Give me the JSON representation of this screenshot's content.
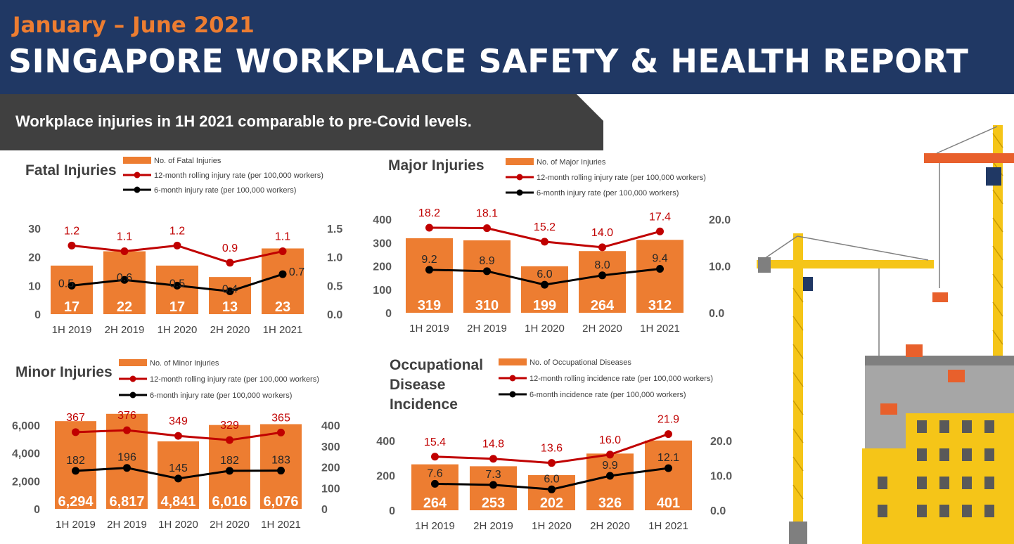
{
  "header": {
    "period": "January – June 2021",
    "title": "SINGAPORE WORKPLACE SAFETY & HEALTH REPORT"
  },
  "banner": {
    "text": "Workplace injuries in 1H 2021 comparable to pre-Covid levels."
  },
  "colors": {
    "navy": "#203864",
    "orange": "#ED7D31",
    "red": "#C00000",
    "black": "#000000",
    "banner": "#404040",
    "text": "#404040"
  },
  "illustration": {
    "icon": "construction-crane-building-icon"
  },
  "chart_data": [
    {
      "type": "bar",
      "title": "Fatal Injuries",
      "categories": [
        "1H 2019",
        "2H 2019",
        "1H 2020",
        "2H 2020",
        "1H 2021"
      ],
      "bar_series": {
        "name": "No. of Fatal Injuries",
        "values": [
          17,
          22,
          17,
          13,
          23
        ],
        "labels": [
          "17",
          "22",
          "17",
          "13",
          "23"
        ]
      },
      "line_series": [
        {
          "name": "12-month rolling injury rate (per 100,000 workers)",
          "color": "#C00000",
          "values": [
            1.2,
            1.1,
            1.2,
            0.9,
            1.1
          ],
          "labels": [
            "1.2",
            "1.1",
            "1.2",
            "0.9",
            "1.1"
          ]
        },
        {
          "name": "6-month injury rate (per 100,000 workers)",
          "color": "#000000",
          "values": [
            0.5,
            0.6,
            0.5,
            0.4,
            0.7
          ],
          "labels": [
            "0.5",
            "0.6",
            "0.5",
            "0.4",
            "0.7"
          ]
        }
      ],
      "y_left": {
        "range": [
          0,
          35
        ],
        "ticks": [
          0,
          10,
          20,
          30
        ],
        "tick_labels": [
          "0",
          "10",
          "20",
          "30"
        ]
      },
      "y_right": {
        "range": [
          0,
          1.75
        ],
        "ticks": [
          0,
          0.5,
          1.0,
          1.5
        ],
        "tick_labels": [
          "0.0",
          "0.5",
          "1.0",
          "1.5"
        ]
      },
      "legend_position": "top"
    },
    {
      "type": "bar",
      "title": "Major Injuries",
      "categories": [
        "1H 2019",
        "2H 2019",
        "1H 2020",
        "2H 2020",
        "1H 2021"
      ],
      "bar_series": {
        "name": "No. of Major Injuries",
        "values": [
          319,
          310,
          199,
          264,
          312
        ],
        "labels": [
          "319",
          "310",
          "199",
          "264",
          "312"
        ]
      },
      "line_series": [
        {
          "name": "12-month rolling injury rate (per 100,000 workers)",
          "color": "#C00000",
          "values": [
            18.2,
            18.1,
            15.2,
            14.0,
            17.4
          ],
          "labels": [
            "18.2",
            "18.1",
            "15.2",
            "14.0",
            "17.4"
          ]
        },
        {
          "name": "6-month injury rate (per 100,000 workers)",
          "color": "#000000",
          "values": [
            9.2,
            8.9,
            6.0,
            8.0,
            9.4
          ],
          "labels": [
            "9.2",
            "8.9",
            "6.0",
            "8.0",
            "9.4"
          ]
        }
      ],
      "y_left": {
        "range": [
          0,
          400
        ],
        "ticks": [
          0,
          100,
          200,
          300,
          400
        ],
        "tick_labels": [
          "0",
          "100",
          "200",
          "300",
          "400"
        ]
      },
      "y_right": {
        "range": [
          0,
          20
        ],
        "ticks": [
          0,
          10,
          20
        ],
        "tick_labels": [
          "0.0",
          "10.0",
          "20.0"
        ]
      },
      "legend_position": "top"
    },
    {
      "type": "bar",
      "title": "Minor Injuries",
      "categories": [
        "1H 2019",
        "2H 2019",
        "1H 2020",
        "2H 2020",
        "1H 2021"
      ],
      "bar_series": {
        "name": "No. of Minor Injuries",
        "values": [
          6294,
          6817,
          4841,
          6016,
          6076
        ],
        "labels": [
          "6,294",
          "6,817",
          "4,841",
          "6,016",
          "6,076"
        ]
      },
      "line_series": [
        {
          "name": "12-month rolling injury rate (per 100,000 workers)",
          "color": "#C00000",
          "values": [
            367,
            376,
            349,
            329,
            365
          ],
          "labels": [
            "367",
            "376",
            "349",
            "329",
            "365"
          ]
        },
        {
          "name": "6-month injury rate (per 100,000 workers)",
          "color": "#000000",
          "values": [
            182,
            196,
            145,
            182,
            183
          ],
          "labels": [
            "182",
            "196",
            "145",
            "182",
            "183"
          ]
        }
      ],
      "y_left": {
        "range": [
          0,
          7000
        ],
        "ticks": [
          0,
          2000,
          4000,
          6000
        ],
        "tick_labels": [
          "0",
          "2,000",
          "4,000",
          "6,000"
        ]
      },
      "y_right": {
        "range": [
          0,
          400
        ],
        "ticks": [
          0,
          100,
          200,
          300,
          400
        ],
        "tick_labels": [
          "0",
          "100",
          "200",
          "300",
          "400"
        ]
      },
      "legend_position": "top"
    },
    {
      "type": "bar",
      "title": "Occupational Disease Incidence",
      "categories": [
        "1H 2019",
        "2H 2019",
        "1H 2020",
        "2H 2020",
        "1H 2021"
      ],
      "bar_series": {
        "name": "No. of Occupational Diseases",
        "values": [
          264,
          253,
          202,
          326,
          401
        ],
        "labels": [
          "264",
          "253",
          "202",
          "326",
          "401"
        ]
      },
      "line_series": [
        {
          "name": "12-month rolling incidence rate (per 100,000 workers)",
          "color": "#C00000",
          "values": [
            15.4,
            14.8,
            13.6,
            16.0,
            21.9
          ],
          "labels": [
            "15.4",
            "14.8",
            "13.6",
            "16.0",
            "21.9"
          ]
        },
        {
          "name": "6-month incidence rate (per 100,000 workers)",
          "color": "#000000",
          "values": [
            7.6,
            7.3,
            6.0,
            9.9,
            12.1
          ],
          "labels": [
            "7.6",
            "7.3",
            "6.0",
            "9.9",
            "12.1"
          ]
        }
      ],
      "y_left": {
        "range": [
          0,
          400
        ],
        "ticks": [
          0,
          200,
          400
        ],
        "tick_labels": [
          "0",
          "200",
          "400"
        ]
      },
      "y_right": {
        "range": [
          0,
          20
        ],
        "ticks": [
          0,
          10,
          20
        ],
        "tick_labels": [
          "0.0",
          "10.0",
          "20.0"
        ]
      },
      "legend_position": "top"
    }
  ]
}
